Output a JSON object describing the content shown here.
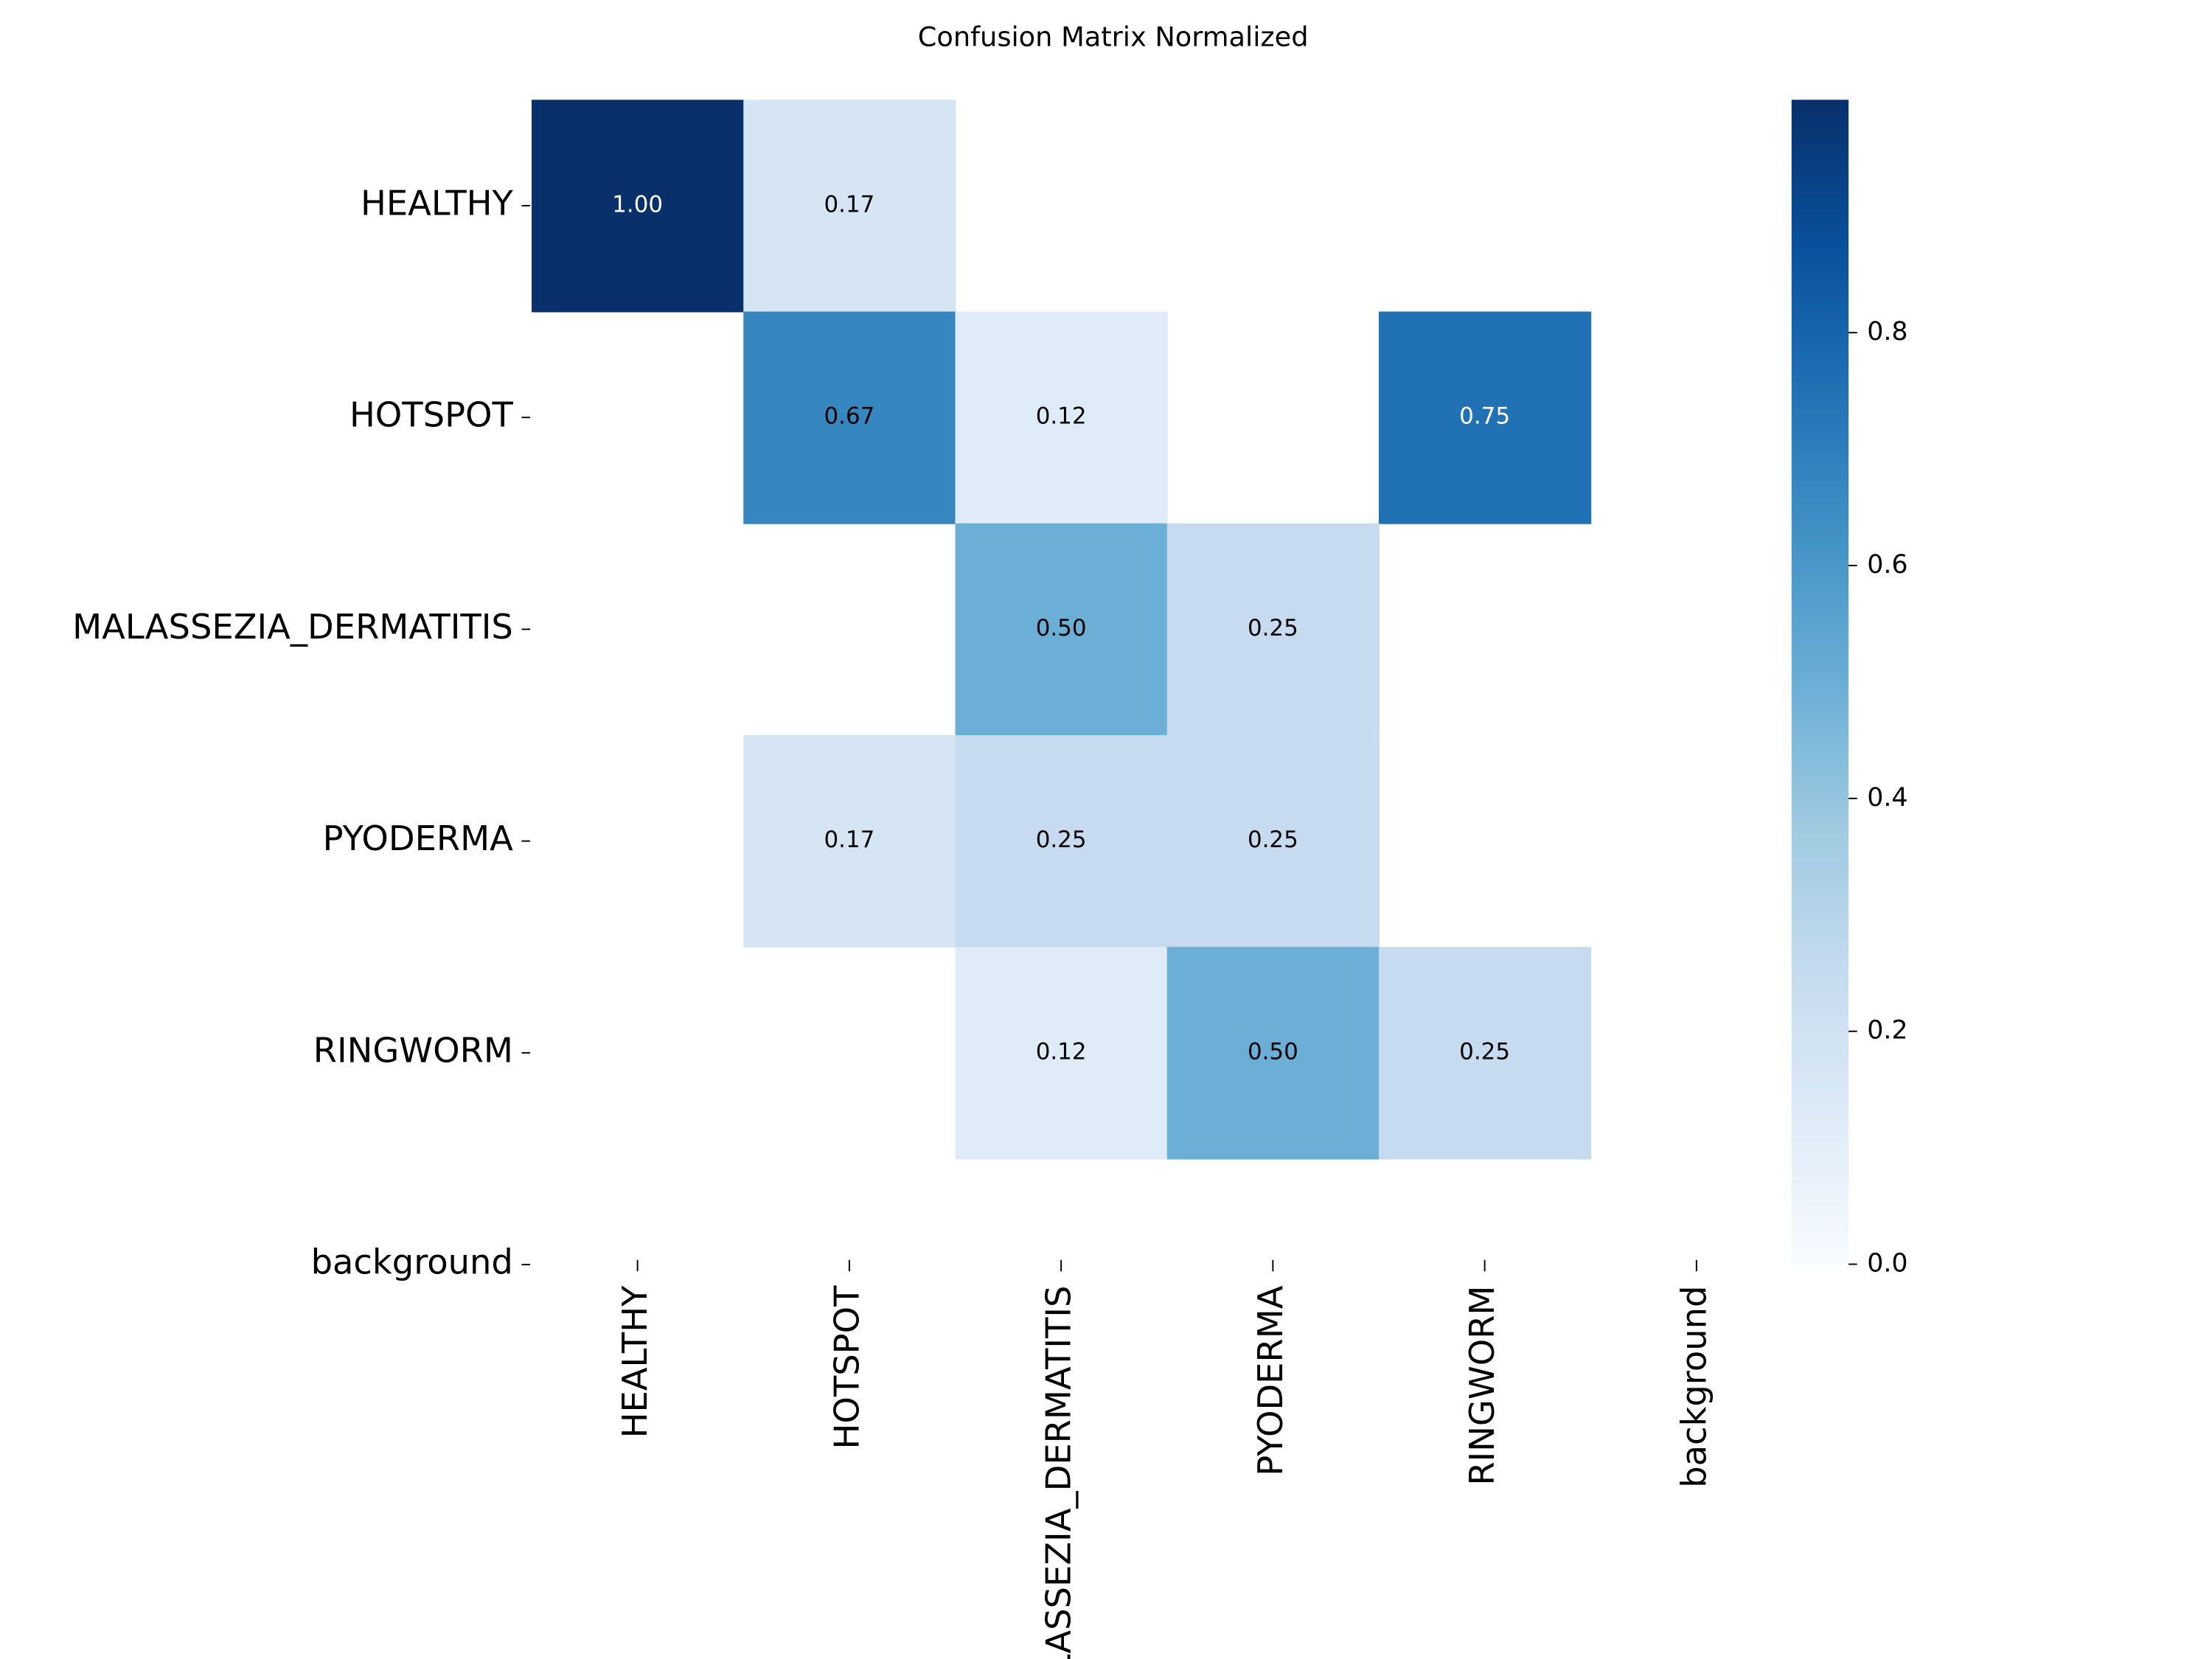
{
  "chart_data": {
    "type": "heatmap",
    "title": "Confusion Matrix Normalized",
    "x_categories": [
      "HEALTHY",
      "HOTSPOT",
      "MALASSEZIA_DERMATITIS",
      "PYODERMA",
      "RINGWORM",
      "background"
    ],
    "y_categories": [
      "HEALTHY",
      "HOTSPOT",
      "MALASSEZIA_DERMATITIS",
      "PYODERMA",
      "RINGWORM",
      "background"
    ],
    "values": [
      [
        1,
        0.17,
        null,
        null,
        null,
        null
      ],
      [
        null,
        0.67,
        0.12,
        null,
        0.75,
        null
      ],
      [
        null,
        null,
        0.5,
        0.25,
        null,
        null
      ],
      [
        null,
        0.17,
        0.25,
        0.25,
        null,
        null
      ],
      [
        null,
        null,
        0.12,
        0.5,
        0.25,
        null
      ],
      [
        null,
        null,
        null,
        null,
        null,
        null
      ]
    ],
    "value_labels": [
      [
        "1.00",
        "0.17",
        null,
        null,
        null,
        null
      ],
      [
        null,
        "0.67",
        "0.12",
        null,
        "0.75",
        null
      ],
      [
        null,
        null,
        "0.50",
        "0.25",
        null,
        null
      ],
      [
        null,
        "0.17",
        "0.25",
        "0.25",
        null,
        null
      ],
      [
        null,
        null,
        "0.12",
        "0.50",
        "0.25",
        null
      ],
      [
        null,
        null,
        null,
        null,
        null,
        null
      ]
    ],
    "colormap": "Blues",
    "colors": [
      "#f7fbff",
      "#deebf7",
      "#c6dbef",
      "#9ecae1",
      "#6baed6",
      "#4292c6",
      "#2171b5",
      "#08519c",
      "#08306b"
    ],
    "clim": [
      0,
      1
    ],
    "cticks": [
      {
        "value": 0,
        "label": "0.0"
      },
      0.2,
      0.4,
      0.6,
      0.8
    ]
  }
}
